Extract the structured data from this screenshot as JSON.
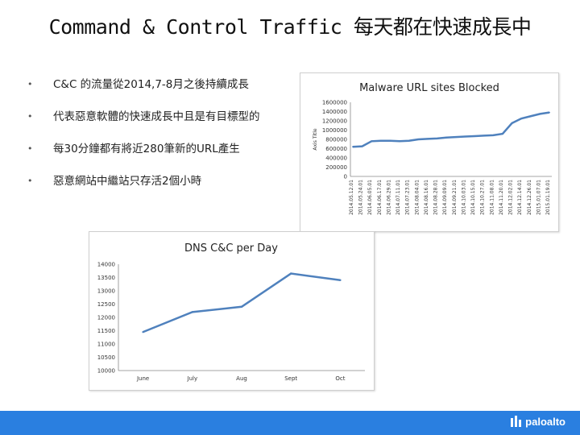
{
  "slide": {
    "title": "Command & Control Traffic 每天都在快速成長中",
    "bullets": [
      "C&C 的流量從2014,7-8月之後持續成長",
      "代表惡意軟體的快速成長中且是有目標型的",
      "每30分鐘都有將近280筆新的URL產生",
      "惡意網站中繼站只存活2個小時"
    ],
    "bullet_symbol": "•"
  },
  "footer": {
    "logo_text": "paloalto",
    "logo_icon": "paloalto-logo-icon",
    "bar_color": "#2a7fe0"
  },
  "chart_data": [
    {
      "type": "line",
      "title": "Malware URL sites Blocked",
      "ylabel": "Axis Title",
      "xlabel": "",
      "ylim": [
        0,
        1600000
      ],
      "yticks": [
        "1600000",
        "1400000",
        "1200000",
        "1000000",
        "800000",
        "600000",
        "400000",
        "200000",
        "0"
      ],
      "ytick_values": [
        1600000,
        1400000,
        1200000,
        1000000,
        800000,
        600000,
        400000,
        200000,
        0
      ],
      "grid": false,
      "line_color": "#4f81bd",
      "x": [
        "2014.05.12.01",
        "2014.05.24.01",
        "2014.06.05.01",
        "2014.06.17.01",
        "2014.06.29.01",
        "2014.07.11.01",
        "2014.07.23.01",
        "2014.08.04.01",
        "2014.08.16.01",
        "2014.08.28.01",
        "2014.09.09.01",
        "2014.09.21.01",
        "2014.10.03.01",
        "2014.10.15.01",
        "2014.10.27.01",
        "2014.11.08.01",
        "2014.11.20.01",
        "2014.12.02.01",
        "2014.12.14.01",
        "2014.12.26.01",
        "2015.01.07.01",
        "2015.01.19.01"
      ],
      "values": [
        640000,
        650000,
        760000,
        770000,
        770000,
        760000,
        770000,
        800000,
        810000,
        820000,
        840000,
        850000,
        860000,
        870000,
        880000,
        890000,
        920000,
        1150000,
        1250000,
        1300000,
        1350000,
        1380000
      ]
    },
    {
      "type": "line",
      "title": "DNS C&C per Day",
      "xlabel": "",
      "ylabel": "",
      "ylim": [
        10000,
        14000
      ],
      "yticks": [
        "14000",
        "13500",
        "13000",
        "12500",
        "12000",
        "11500",
        "11000",
        "10500",
        "10000"
      ],
      "ytick_values": [
        14000,
        13500,
        13000,
        12500,
        12000,
        11500,
        11000,
        10500,
        10000
      ],
      "grid": false,
      "line_color": "#4f81bd",
      "categories": [
        "June",
        "July",
        "Aug",
        "Sept",
        "Oct"
      ],
      "values": [
        11450,
        12200,
        12400,
        13650,
        13400
      ]
    }
  ]
}
